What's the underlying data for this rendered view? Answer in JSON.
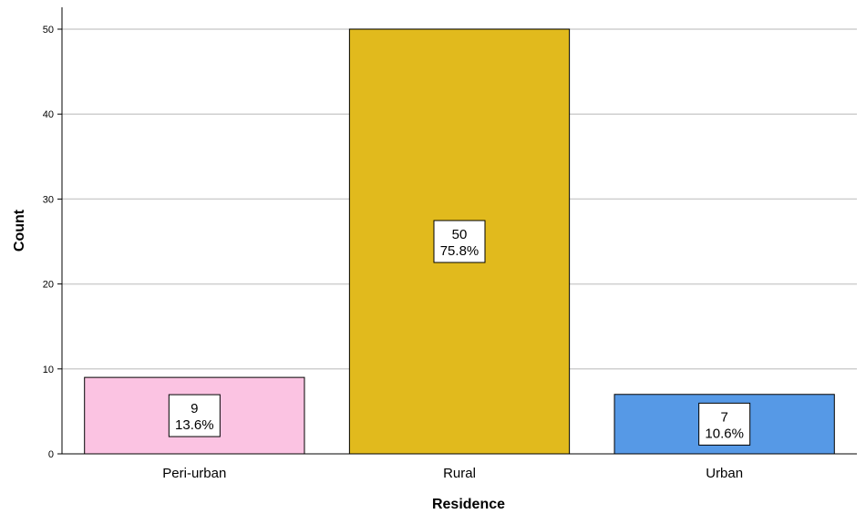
{
  "chart_data": {
    "type": "bar",
    "title": "",
    "xlabel": "Residence",
    "ylabel": "Count",
    "categories": [
      "Peri-urban",
      "Rural",
      "Urban"
    ],
    "values": [
      9,
      50,
      7
    ],
    "percent_labels": [
      "13.6%",
      "75.8%",
      "10.6%"
    ],
    "bar_colors": [
      "#fbc3e2",
      "#e1ba1d",
      "#5699e6"
    ],
    "bar_stroke": "#000000",
    "ylim": [
      0,
      50
    ],
    "yticks": [
      0,
      10,
      20,
      30,
      40,
      50
    ],
    "grid": true,
    "grid_color": "#cfcfcf",
    "legend": "none"
  }
}
